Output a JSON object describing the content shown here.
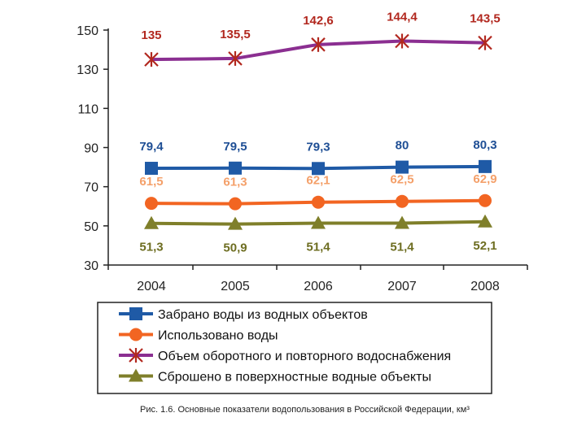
{
  "chart_data": {
    "type": "line",
    "categories": [
      "2004",
      "2005",
      "2006",
      "2007",
      "2008"
    ],
    "ylim": [
      30,
      150
    ],
    "yticks": [
      30,
      50,
      70,
      90,
      110,
      130,
      150
    ],
    "ytick_labels": [
      "30",
      "50",
      "70",
      "90",
      "110",
      "130",
      "150"
    ],
    "series": [
      {
        "name": "Забрано воды из водных объектов",
        "values": [
          79.4,
          79.5,
          79.3,
          80,
          80.3
        ],
        "labels": [
          "79,4",
          "79,5",
          "79,3",
          "80",
          "80,3"
        ],
        "color": "#1f5aa6",
        "marker": "square"
      },
      {
        "name": "Использовано воды",
        "values": [
          61.5,
          61.3,
          62.1,
          62.5,
          62.9
        ],
        "labels": [
          "61,5",
          "61,3",
          "62,1",
          "62,5",
          "62,9"
        ],
        "color": "#f26522",
        "marker": "circle"
      },
      {
        "name": "Объем оборотного и повторного водоснабжения",
        "values": [
          135,
          135.5,
          142.6,
          144.4,
          143.5
        ],
        "labels": [
          "135",
          "135,5",
          "142,6",
          "144,4",
          "143,5"
        ],
        "color": "#8b2f91",
        "marker": "asterisk"
      },
      {
        "name": "Сброшено в поверхностные водные объекты",
        "values": [
          51.3,
          50.9,
          51.4,
          51.4,
          52.1
        ],
        "labels": [
          "51,3",
          "50,9",
          "51,4",
          "51,4",
          "52,1"
        ],
        "color": "#7f7f2a",
        "marker": "triangle"
      }
    ],
    "colors": {
      "orange_label": "#f4a06a",
      "red_label": "#b2281f",
      "olive_label": "#6e6e22",
      "blue_label": "#1f4f95"
    },
    "caption": "Рис. 1.6. Основные показатели водопользования в Российской Федерации, км³"
  }
}
